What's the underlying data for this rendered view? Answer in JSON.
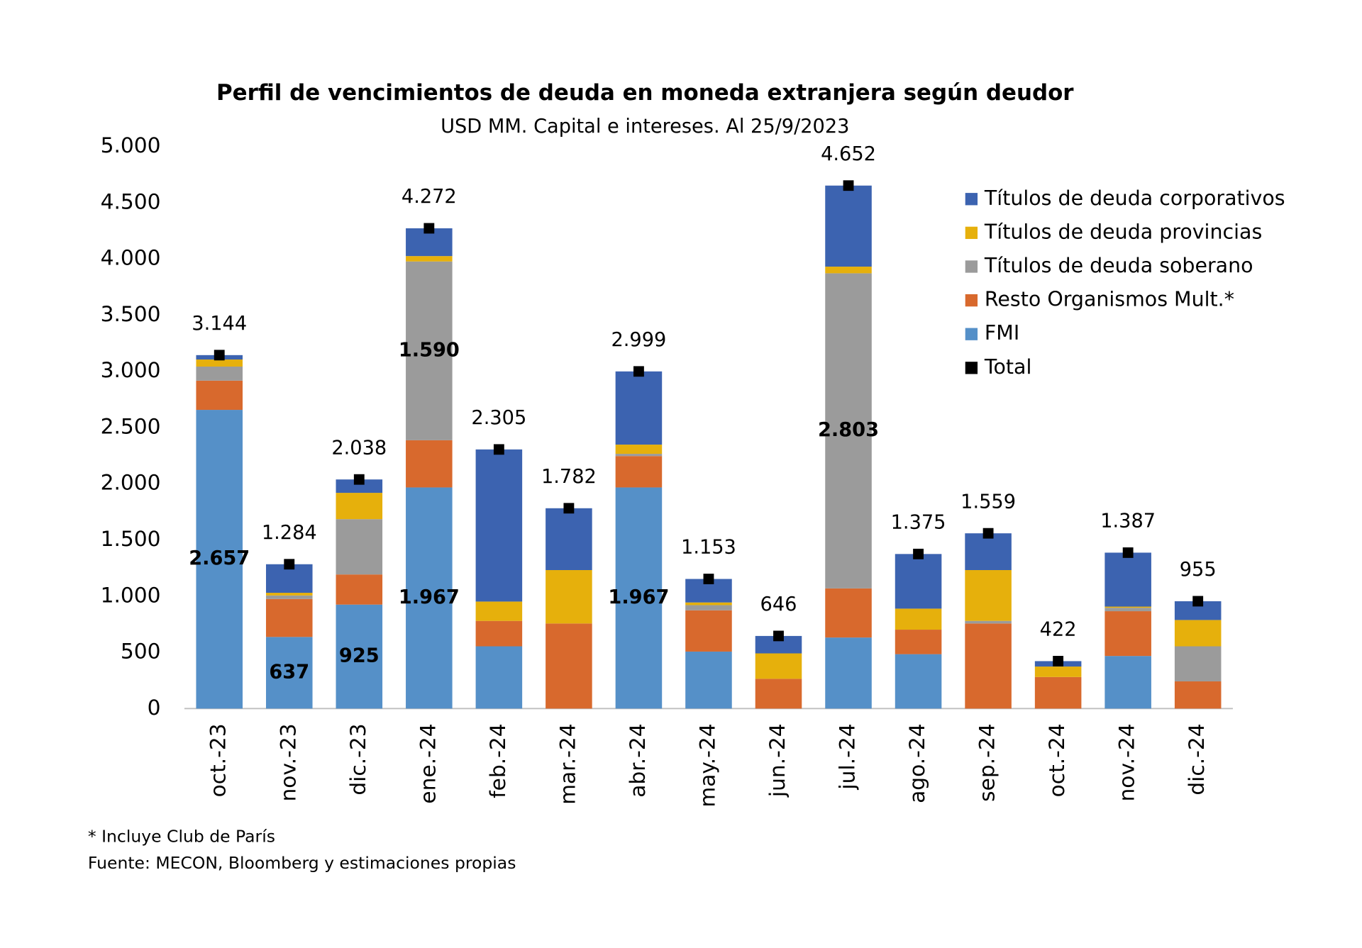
{
  "chart_data": {
    "type": "bar",
    "stacked": true,
    "title": "Perfil de vencimientos de deuda en moneda extranjera según deudor",
    "subtitle": "USD MM. Capital e intereses. Al 25/9/2023",
    "categories": [
      "oct.-23",
      "nov.-23",
      "dic.-23",
      "ene.-24",
      "feb.-24",
      "mar.-24",
      "abr.-24",
      "may.-24",
      "jun.-24",
      "jul.-24",
      "ago.-24",
      "sep.-24",
      "oct.-24",
      "nov.-24",
      "dic.-24"
    ],
    "series": [
      {
        "name": "FMI",
        "color": "#5590c8",
        "values": [
          2657,
          637,
          925,
          1967,
          554,
          0,
          1967,
          507,
          0,
          632,
          484,
          0,
          0,
          468,
          0
        ],
        "value_labels": [
          "2.657",
          "637",
          "925",
          "1.967",
          null,
          null,
          "1.967",
          null,
          null,
          null,
          null,
          null,
          null,
          null,
          null
        ]
      },
      {
        "name": "Resto Organismos Mult.*",
        "color": "#d8692d",
        "values": [
          260,
          338,
          268,
          420,
          226,
          757,
          279,
          367,
          265,
          437,
          218,
          757,
          281,
          398,
          242
        ]
      },
      {
        "name": "Títulos de deuda soberano",
        "color": "#9b9b9b",
        "values": [
          125,
          31,
          492,
          1590,
          0,
          0,
          20,
          46,
          0,
          2803,
          0,
          23,
          0,
          31,
          312
        ],
        "value_labels": [
          null,
          null,
          null,
          "1.590",
          null,
          null,
          null,
          null,
          null,
          "2.803",
          null,
          null,
          null,
          null,
          null
        ]
      },
      {
        "name": "Títulos de deuda provincias",
        "color": "#e6b00c",
        "values": [
          63,
          24,
          234,
          48,
          172,
          475,
          82,
          24,
          226,
          59,
          187,
          452,
          93,
          10,
          234
        ]
      },
      {
        "name": "Títulos de deuda corporativos",
        "color": "#3c63b0",
        "values": [
          39,
          254,
          119,
          247,
          1353,
          550,
          651,
          209,
          155,
          721,
          486,
          327,
          48,
          480,
          167
        ]
      },
      {
        "name": "Total",
        "color": "#000000",
        "type": "scatter",
        "values": [
          3144,
          1284,
          2038,
          4272,
          2305,
          1782,
          2999,
          1153,
          646,
          4652,
          1375,
          1559,
          422,
          1387,
          955
        ],
        "value_labels": [
          "3.144",
          "1.284",
          "2.038",
          "4.272",
          "2.305",
          "1.782",
          "2.999",
          "1.153",
          "646",
          "4.652",
          "1.375",
          "1.559",
          "422",
          "1.387",
          "955"
        ]
      }
    ],
    "ylim": [
      0,
      5000
    ],
    "yticks": [
      0,
      500,
      {
        "value": 1000,
        "label": "1.000"
      },
      {
        "value": 1500,
        "label": "1.500"
      },
      {
        "value": 2000,
        "label": "2.000"
      },
      {
        "value": 2500,
        "label": "2.500"
      },
      {
        "value": 3000,
        "label": "3.000"
      },
      {
        "value": 3500,
        "label": "3.500"
      },
      {
        "value": 4000,
        "label": "4.000"
      },
      {
        "value": 4500,
        "label": "4.500"
      },
      {
        "value": 5000,
        "label": "5.000"
      }
    ],
    "legend": "right",
    "notes": [
      "* Incluye Club de París",
      "Fuente: MECON, Bloomberg y estimaciones propias"
    ]
  }
}
